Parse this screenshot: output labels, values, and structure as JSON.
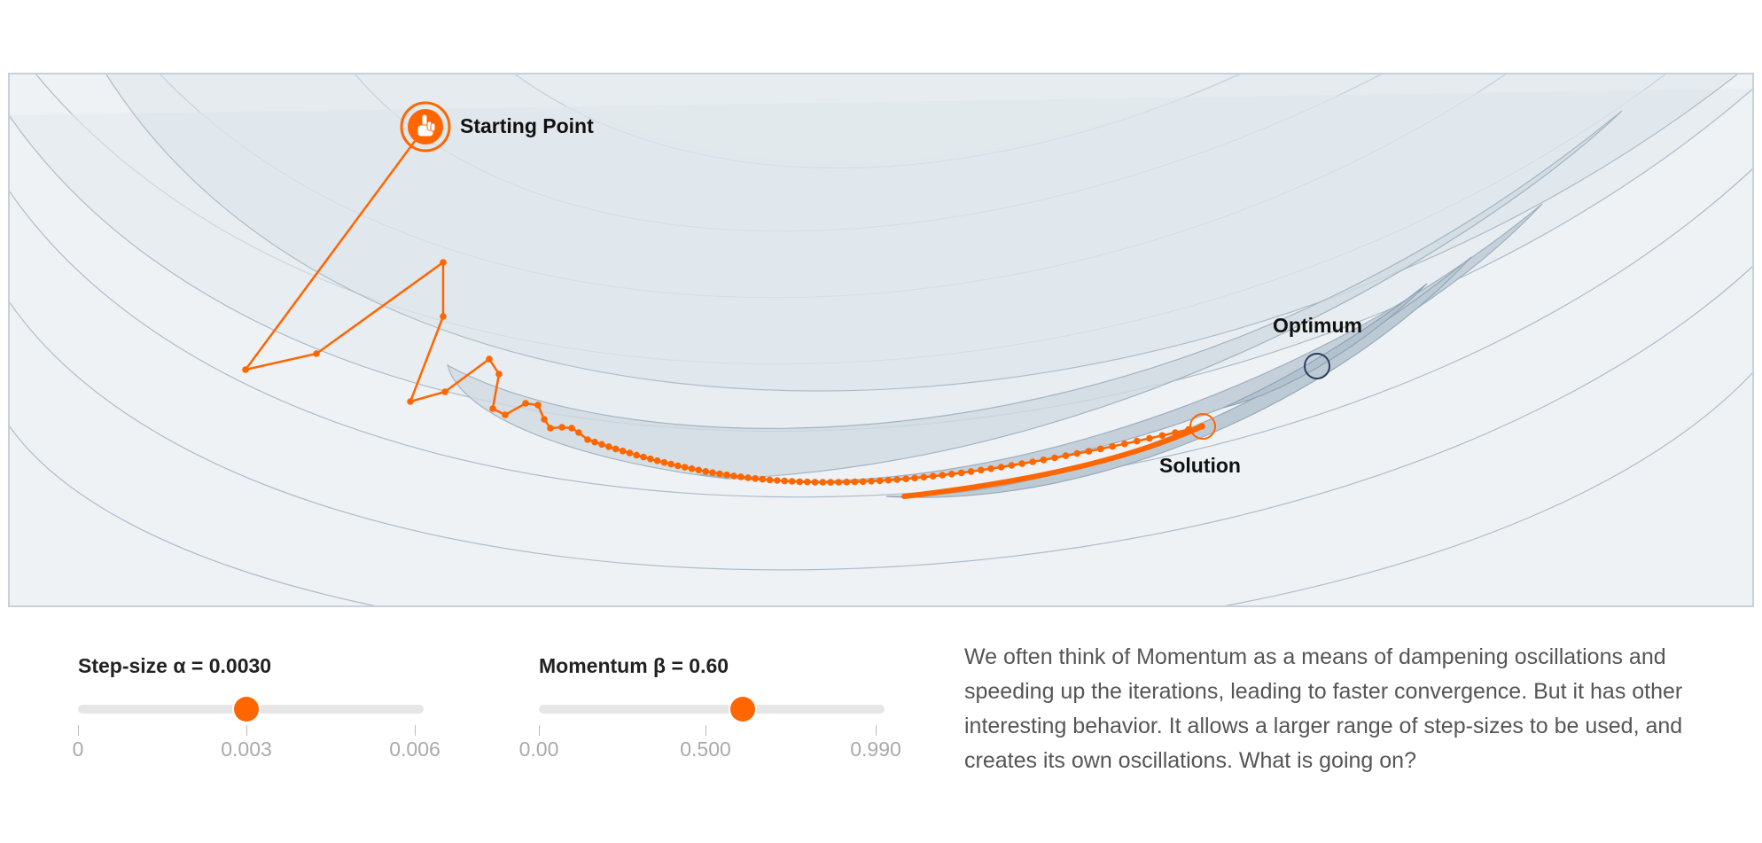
{
  "viz": {
    "labels": {
      "start": "Starting Point",
      "optimum": "Optimum",
      "solution": "Solution"
    },
    "colors": {
      "path": "#ff6600",
      "optimum": "#2c3e5c",
      "contour": "#9fb0bf",
      "background": "#eef2f5"
    },
    "start_icon": "hand-pointer-icon"
  },
  "controls": {
    "step_size": {
      "label": "Step-size α = 0.0030",
      "value": 0.003,
      "min": 0,
      "max": 0.006,
      "ticks": [
        "0",
        "0.003",
        "0.006"
      ]
    },
    "momentum": {
      "label": "Momentum β = 0.60",
      "value": 0.6,
      "min": 0,
      "max": 0.99,
      "ticks": [
        "0.00",
        "0.500",
        "0.990"
      ]
    }
  },
  "description": "We often think of Momentum as a means of dampening oscillations and speeding up the iterations, leading to faster convergence. But it has other interesting behavior. It allows a larger range of step-sizes to be used, and creates its own oscillations. What is going on?"
}
